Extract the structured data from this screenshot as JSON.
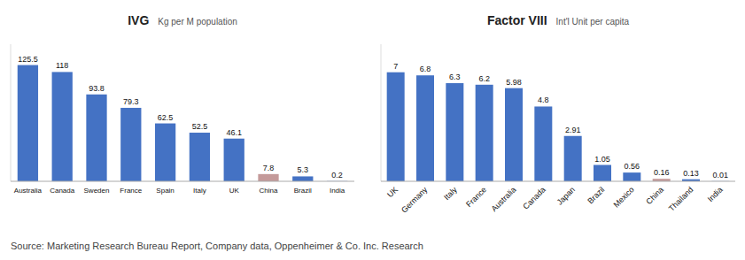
{
  "chart_data": [
    {
      "type": "bar",
      "title": "IVG",
      "subtitle": "Kg per M population",
      "categories": [
        "Australia",
        "Canada",
        "Sweden",
        "France",
        "Spain",
        "Italy",
        "UK",
        "China",
        "Brazil",
        "India"
      ],
      "values": [
        125.5,
        118,
        93.8,
        79.3,
        62.5,
        52.5,
        46.1,
        7.8,
        5.3,
        0.2
      ],
      "colors": [
        "#4472C4",
        "#4472C4",
        "#4472C4",
        "#4472C4",
        "#4472C4",
        "#4472C4",
        "#4472C4",
        "#C49A9A",
        "#4472C4",
        "#4472C4"
      ],
      "ylim": [
        0,
        148
      ],
      "grid": false,
      "data_labels": true,
      "tick_labels": "x",
      "annotations": [
        "Source: Marketing Research Bureau Report, Company data, Oppenheimer & Co. Inc. Research"
      ]
    },
    {
      "type": "bar",
      "title": "Factor VIII",
      "subtitle": "Int'l Unit per capita",
      "categories": [
        "UK",
        "Germany",
        "Italy",
        "France",
        "Australia",
        "Canada",
        "Japan",
        "Brazil",
        "Mexico",
        "China",
        "Thailand",
        "India"
      ],
      "values": [
        7,
        6.8,
        6.3,
        6.2,
        5.98,
        4.8,
        2.91,
        1.05,
        0.56,
        0.16,
        0.13,
        0.01
      ],
      "colors": [
        "#4472C4",
        "#4472C4",
        "#4472C4",
        "#4472C4",
        "#4472C4",
        "#4472C4",
        "#4472C4",
        "#4472C4",
        "#4472C4",
        "#C49A9A",
        "#4472C4",
        "#4472C4"
      ],
      "ylim": [
        0,
        8.8
      ],
      "grid": false,
      "data_labels": true,
      "tick_labels": "x"
    }
  ]
}
